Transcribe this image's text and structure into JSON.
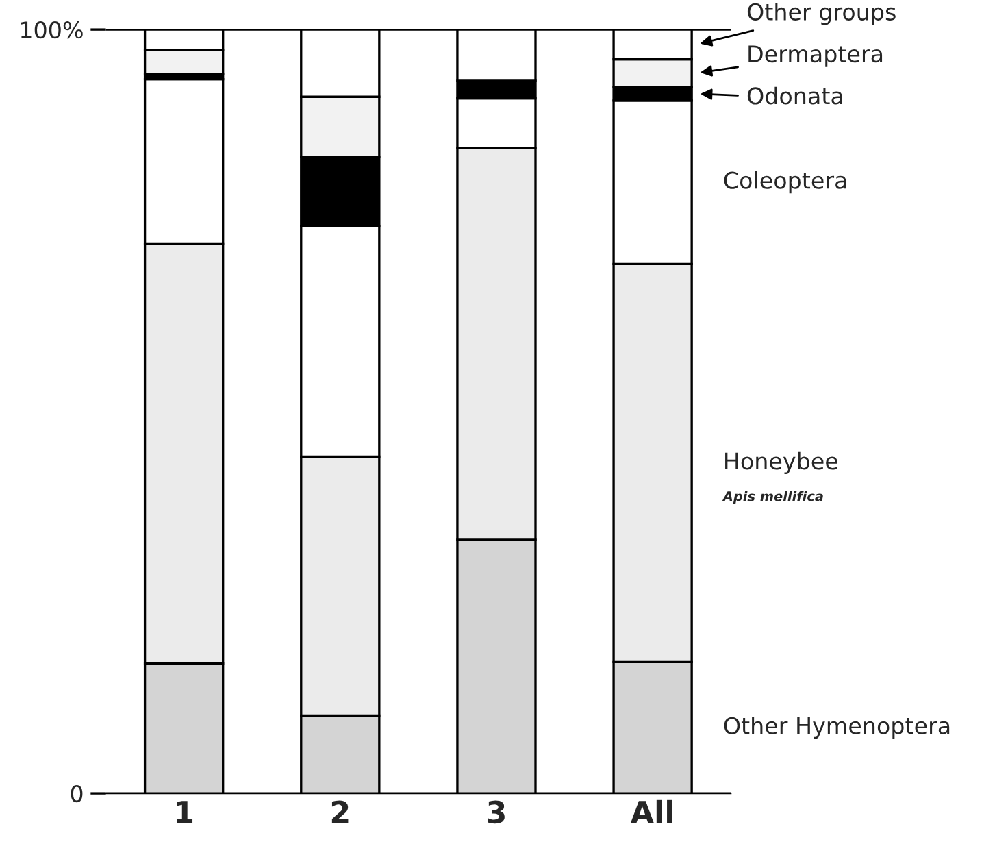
{
  "chart_data": {
    "type": "bar",
    "stacked": true,
    "categories": [
      "1",
      "2",
      "3",
      "All"
    ],
    "series": [
      {
        "name": "Other Hymenoptera",
        "color": "#d4d4d4",
        "values": [
          17,
          10.2,
          33.2,
          17.2
        ]
      },
      {
        "name": "Honeybee",
        "color": "#ebebeb",
        "values": [
          55,
          33.9,
          51.3,
          52.1
        ]
      },
      {
        "name": "Coleoptera",
        "color": "#ffffff",
        "values": [
          21.5,
          30.2,
          6.5,
          21.4
        ]
      },
      {
        "name": "Odonata",
        "color": "#000000",
        "values": [
          0.7,
          9.0,
          2.3,
          1.8
        ]
      },
      {
        "name": "Dermaptera",
        "color": "#f2f2f2",
        "values": [
          3.1,
          7.9,
          0,
          3.6
        ]
      },
      {
        "name": "Other groups",
        "color": "#ffffff",
        "values": [
          2.7,
          8.8,
          6.7,
          3.9
        ]
      }
    ],
    "annotations": [
      "Apis mellifica"
    ],
    "ylim": [
      0,
      100
    ],
    "yticks": [
      {
        "value": 0,
        "label": "0"
      },
      {
        "value": 100,
        "label": "100%"
      }
    ],
    "grid": "y",
    "legend": "right"
  }
}
